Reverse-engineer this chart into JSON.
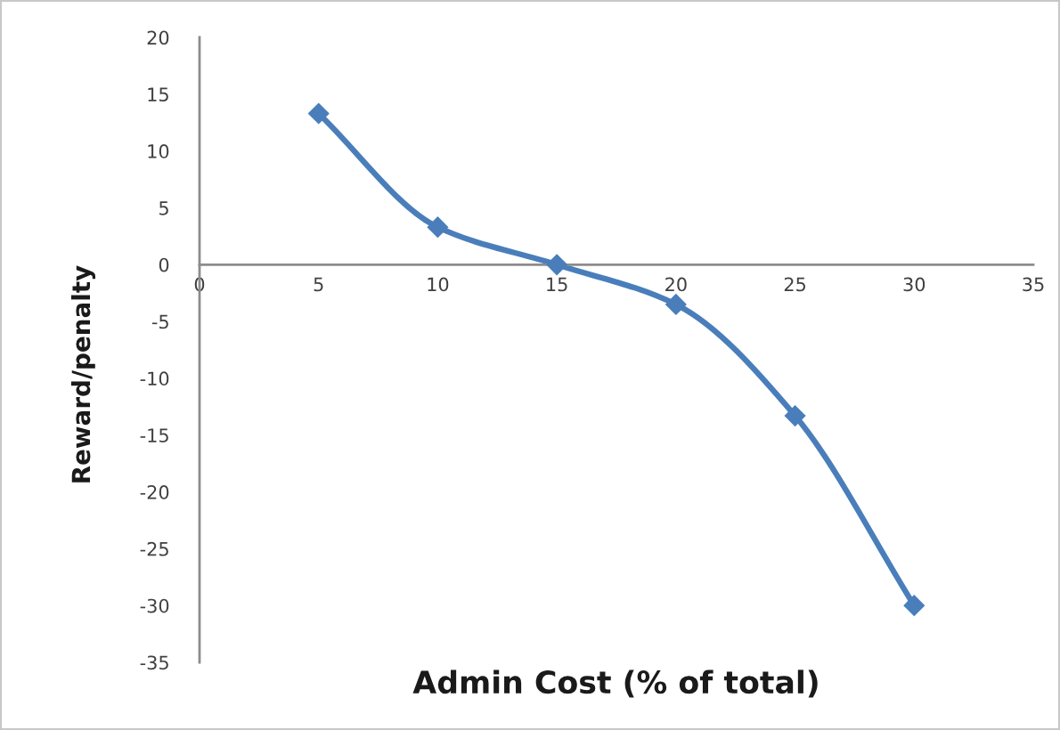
{
  "chart_data": {
    "type": "line",
    "xlabel": "Admin Cost (% of total)",
    "ylabel": "Reward/penalty",
    "x": [
      5,
      10,
      15,
      20,
      25,
      30
    ],
    "series": [
      {
        "color": "#4a7ebb",
        "values": [
          13.3,
          3.3,
          0,
          -3.5,
          -13.3,
          -30
        ]
      }
    ],
    "xlim": [
      0,
      35
    ],
    "xticks": [
      0,
      5,
      10,
      15,
      20,
      25,
      30,
      35
    ],
    "ylim": [
      -35,
      20
    ],
    "yticks": [
      -35,
      -30,
      -25,
      -20,
      -15,
      -10,
      -5,
      0,
      5,
      10,
      15,
      20
    ],
    "marker": "diamond",
    "line_style": "solid"
  }
}
